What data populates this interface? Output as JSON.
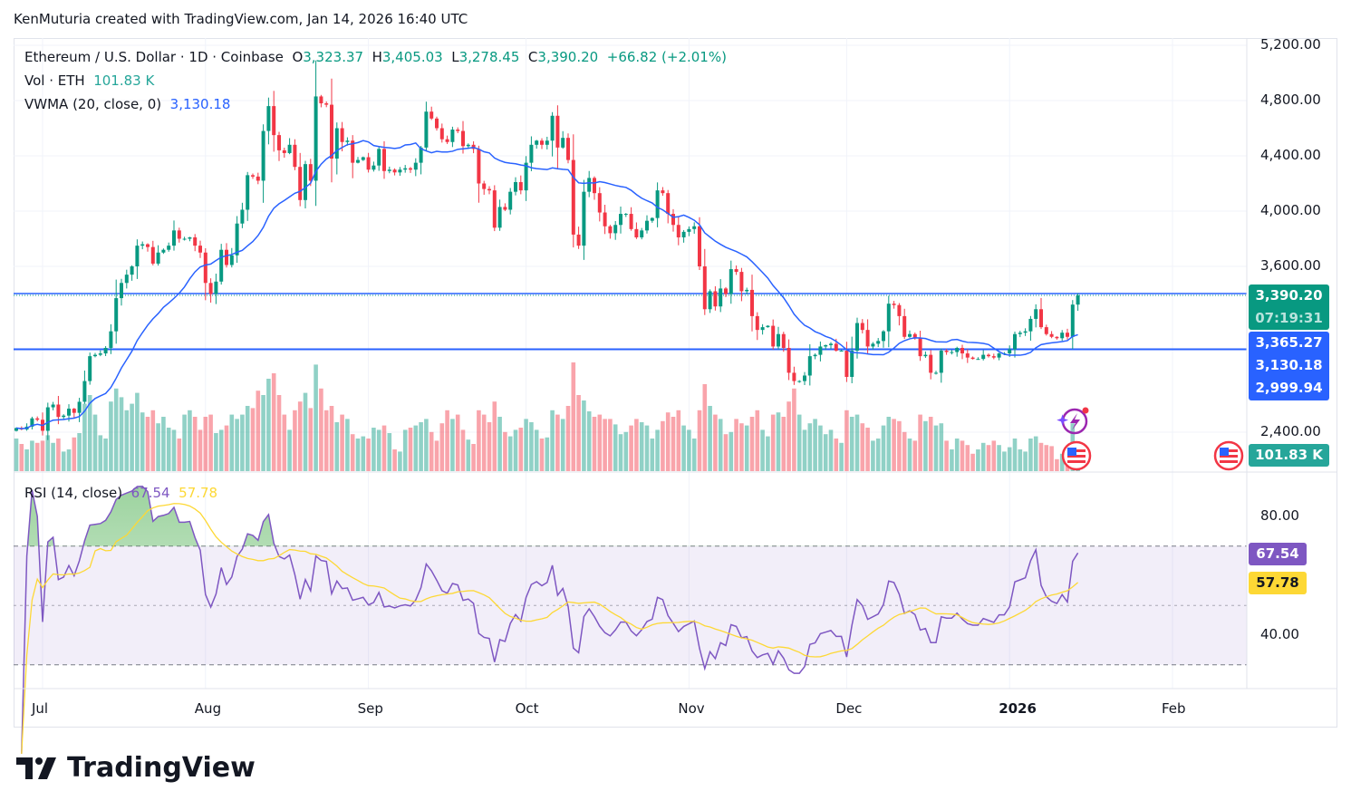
{
  "credit": "KenMuturia created with TradingView.com, Jan 14, 2026 16:40 UTC",
  "legend": {
    "symbol": "Ethereum / U.S. Dollar · 1D · Coinbase",
    "o_label": "O",
    "o": "3,323.37",
    "h_label": "H",
    "h": "3,405.03",
    "l_label": "L",
    "l": "3,278.45",
    "c_label": "C",
    "c": "3,390.20",
    "change": "+66.82 (+2.01%)",
    "vol_label": "Vol · ETH",
    "vol": "101.83 K",
    "vwma_label": "VWMA (20, close, 0)",
    "vwma": "3,130.18",
    "rsi_label": "RSI (14, close)",
    "rsi": "67.54",
    "rsi_ma": "57.78"
  },
  "price_axis": {
    "ticks": [
      "5,200.00",
      "4,800.00",
      "4,400.00",
      "4,000.00",
      "3,600.00",
      "2,400.00"
    ],
    "tick_values": [
      5200,
      4800,
      4400,
      4000,
      3600,
      2400
    ],
    "tags": {
      "last_price": "3,390.20",
      "countdown": "07:19:31",
      "level_1": "3,365.27",
      "vwma": "3,130.18",
      "level_2": "2,999.94",
      "volume": "101.83 K"
    },
    "levels": [
      3365.27,
      2999.94
    ]
  },
  "rsi_axis": {
    "ticks": [
      "80.00",
      "40.00"
    ],
    "tick_values": [
      80,
      40
    ],
    "tag_rsi": "67.54",
    "tag_ma": "57.78",
    "overbought": 70,
    "middle": 50,
    "oversold": 30
  },
  "time_axis": {
    "ticks": [
      {
        "label": "Jul",
        "date": "2025-07-01"
      },
      {
        "label": "Aug",
        "date": "2025-08-01"
      },
      {
        "label": "Sep",
        "date": "2025-09-01"
      },
      {
        "label": "Oct",
        "date": "2025-10-01"
      },
      {
        "label": "Nov",
        "date": "2025-11-01"
      },
      {
        "label": "Dec",
        "date": "2025-12-01"
      },
      {
        "label": "2026",
        "date": "2026-01-01"
      },
      {
        "label": "Feb",
        "date": "2026-02-01"
      }
    ]
  },
  "colors": {
    "up": "#089981",
    "down": "#f23645",
    "vwma": "#2962ff",
    "rsi": "#7e57c2",
    "rsi_ma": "#fdd835",
    "level": "#2962ff"
  },
  "icons": [
    "lightning-event-icon",
    "us-flag-event-icon",
    "us-flag-event-icon"
  ],
  "brand": "TradingView",
  "chart_data": {
    "type": "candlestick",
    "title": "Ethereum / U.S. Dollar · 1D · Coinbase",
    "start_date": "2025-06-26",
    "interval": "1D",
    "last_candle": {
      "open": 3323.37,
      "high": 3405.03,
      "low": 3278.45,
      "close": 3390.2
    },
    "ylim": [
      2400,
      5200
    ],
    "close": [
      2430,
      2420,
      2440,
      2500,
      2490,
      2410,
      2580,
      2600,
      2510,
      2520,
      2570,
      2540,
      2620,
      2770,
      2950,
      2960,
      2970,
      3010,
      3130,
      3370,
      3480,
      3540,
      3600,
      3750,
      3760,
      3740,
      3620,
      3700,
      3720,
      3750,
      3860,
      3800,
      3800,
      3810,
      3750,
      3700,
      3480,
      3400,
      3490,
      3720,
      3610,
      3680,
      3910,
      4010,
      4260,
      4250,
      4220,
      4580,
      4760,
      4550,
      4440,
      4420,
      4480,
      4320,
      4080,
      4340,
      4220,
      4830,
      4780,
      4770,
      4380,
      4600,
      4500,
      4510,
      4350,
      4370,
      4390,
      4300,
      4330,
      4450,
      4290,
      4300,
      4280,
      4300,
      4310,
      4300,
      4350,
      4460,
      4720,
      4670,
      4600,
      4520,
      4500,
      4590,
      4580,
      4470,
      4480,
      4450,
      4200,
      4160,
      4150,
      3880,
      4030,
      4010,
      4140,
      4210,
      4150,
      4350,
      4480,
      4510,
      4480,
      4510,
      4690,
      4460,
      4530,
      4370,
      3830,
      3750,
      4140,
      4240,
      4130,
      3990,
      3890,
      3840,
      3900,
      3980,
      3980,
      3870,
      3810,
      3860,
      3930,
      3950,
      4150,
      4130,
      3980,
      3900,
      3810,
      3850,
      3870,
      3890,
      3600,
      3290,
      3420,
      3310,
      3440,
      3400,
      3580,
      3560,
      3420,
      3430,
      3240,
      3140,
      3160,
      3170,
      3020,
      3110,
      3010,
      2830,
      2770,
      2770,
      2810,
      2950,
      2960,
      3020,
      3030,
      3040,
      2990,
      2990,
      2800,
      2990,
      3190,
      3140,
      3020,
      3040,
      3060,
      3130,
      3330,
      3320,
      3240,
      3090,
      3110,
      3080,
      2950,
      2960,
      2830,
      2830,
      2990,
      2980,
      2980,
      3010,
      2970,
      2940,
      2930,
      2930,
      2960,
      2950,
      2940,
      2970,
      2970,
      3000,
      3110,
      3120,
      3130,
      3220,
      3290,
      3160,
      3110,
      3090,
      3080,
      3120,
      3090,
      3323.37,
      3390.2
    ],
    "volume_k": [
      300,
      250,
      200,
      280,
      260,
      280,
      330,
      260,
      300,
      180,
      200,
      310,
      350,
      620,
      700,
      520,
      330,
      300,
      640,
      760,
      680,
      560,
      620,
      720,
      540,
      500,
      560,
      440,
      500,
      400,
      380,
      300,
      520,
      560,
      500,
      380,
      500,
      520,
      350,
      380,
      420,
      520,
      480,
      520,
      600,
      580,
      740,
      700,
      850,
      900,
      700,
      520,
      380,
      560,
      640,
      720,
      580,
      980,
      760,
      560,
      600,
      450,
      520,
      480,
      340,
      300,
      320,
      300,
      400,
      380,
      420,
      350,
      200,
      180,
      380,
      400,
      420,
      450,
      480,
      360,
      280,
      440,
      560,
      480,
      520,
      380,
      290,
      250,
      560,
      520,
      450,
      640,
      500,
      360,
      320,
      380,
      400,
      480,
      450,
      380,
      300,
      310,
      560,
      520,
      480,
      600,
      1000,
      700,
      650,
      550,
      500,
      520,
      480,
      480,
      430,
      340,
      360,
      420,
      480,
      450,
      420,
      300,
      380,
      460,
      540,
      500,
      560,
      420,
      380,
      300,
      560,
      800,
      600,
      520,
      480,
      340,
      360,
      480,
      440,
      420,
      500,
      560,
      380,
      320,
      520,
      540,
      500,
      640,
      760,
      520,
      380,
      440,
      480,
      420,
      340,
      380,
      300,
      260,
      560,
      500,
      520,
      440,
      400,
      280,
      300,
      420,
      500,
      480,
      460,
      360,
      300,
      280,
      520,
      460,
      500,
      420,
      440,
      280,
      200,
      300,
      280,
      240,
      160,
      200,
      260,
      240,
      280,
      240,
      180,
      220,
      300,
      200,
      180,
      300,
      320,
      260,
      240,
      230,
      110,
      160,
      210,
      440,
      101.83
    ],
    "indicators": [
      "VWMA (20, close, 0)",
      "RSI (14, close)"
    ]
  }
}
